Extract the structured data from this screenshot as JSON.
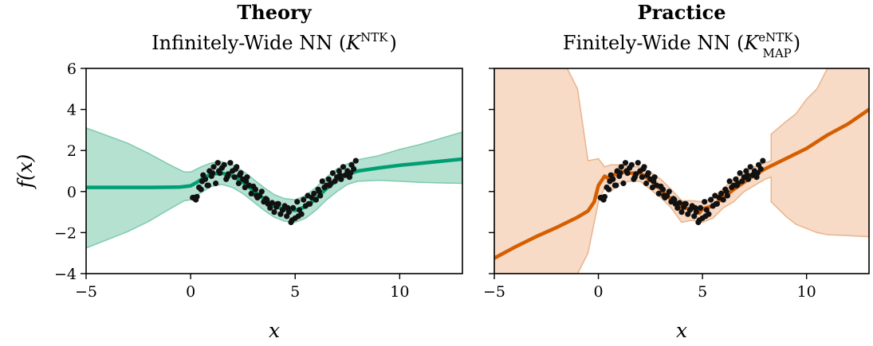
{
  "chart_data": [
    {
      "type": "line",
      "title": "Theory",
      "subtitle": {
        "prefix": "Infinitely-Wide NN (",
        "symbol": "K",
        "sup": "NTK",
        "sub": "",
        "suffix": ")"
      },
      "xlabel": "x",
      "ylabel": "f(x)",
      "xlim": [
        -5,
        13
      ],
      "ylim": [
        -4,
        6
      ],
      "xticks": [
        -5,
        0,
        5,
        10
      ],
      "yticks": [
        -4,
        -2,
        0,
        2,
        4,
        6
      ],
      "xtick_labels": [
        "−5",
        "0",
        "5",
        "10"
      ],
      "ytick_labels": [
        "−4",
        "−2",
        "0",
        "2",
        "4",
        "6"
      ],
      "colors": {
        "line": "#009e73",
        "band": "#a8dcc9",
        "band_edge": "#7fcaaf",
        "points": "#111111"
      },
      "mean": {
        "x": [
          -5,
          -2,
          -1,
          -0.5,
          0,
          0.3,
          0.6,
          1.0,
          1.5,
          2.0,
          2.5,
          3.0,
          3.5,
          4.0,
          4.5,
          5.0,
          5.5,
          6.0,
          6.5,
          7.0,
          7.5,
          8.0,
          9,
          10,
          11,
          12,
          13
        ],
        "y": [
          0.2,
          0.2,
          0.21,
          0.22,
          0.28,
          0.45,
          0.65,
          0.85,
          0.9,
          0.75,
          0.45,
          0.05,
          -0.35,
          -0.7,
          -0.88,
          -0.92,
          -0.75,
          -0.35,
          0.15,
          0.55,
          0.85,
          1.0,
          1.15,
          1.28,
          1.38,
          1.48,
          1.58
        ]
      },
      "band_upper": {
        "x": [
          -5,
          -3,
          -2,
          -1,
          -0.3,
          0,
          0.5,
          1.0,
          1.5,
          2.0,
          2.5,
          3.0,
          3.5,
          4.0,
          4.5,
          5.0,
          5.5,
          6.0,
          6.5,
          7.0,
          7.5,
          8.0,
          9,
          10,
          11,
          12,
          13
        ],
        "y": [
          3.1,
          2.35,
          1.85,
          1.3,
          0.95,
          0.95,
          1.2,
          1.4,
          1.45,
          1.3,
          1.0,
          0.6,
          0.2,
          -0.15,
          -0.35,
          -0.4,
          -0.2,
          0.2,
          0.7,
          1.1,
          1.35,
          1.55,
          1.75,
          2.05,
          2.3,
          2.6,
          2.9
        ]
      },
      "band_lower": {
        "x": [
          -5,
          -3,
          -2,
          -1,
          -0.3,
          0,
          0.5,
          1.0,
          1.5,
          2.0,
          2.5,
          3.0,
          3.5,
          4.0,
          4.5,
          5.0,
          5.5,
          6.0,
          6.5,
          7.0,
          7.5,
          8.0,
          9,
          10,
          11,
          12,
          13
        ],
        "y": [
          -2.75,
          -1.95,
          -1.45,
          -0.85,
          -0.45,
          -0.4,
          -0.05,
          0.25,
          0.35,
          0.2,
          -0.1,
          -0.5,
          -0.9,
          -1.25,
          -1.45,
          -1.5,
          -1.3,
          -0.9,
          -0.4,
          0.0,
          0.35,
          0.5,
          0.55,
          0.5,
          0.45,
          0.42,
          0.4
        ]
      },
      "points": {
        "x": [
          0.1,
          0.2,
          0.3,
          0.4,
          0.5,
          0.6,
          0.7,
          0.8,
          0.9,
          1.0,
          1.1,
          1.2,
          1.3,
          1.4,
          1.5,
          1.6,
          1.7,
          1.8,
          1.9,
          2.0,
          2.1,
          2.2,
          2.3,
          2.4,
          2.5,
          2.6,
          2.7,
          2.8,
          2.9,
          3.0,
          3.1,
          3.2,
          3.3,
          3.4,
          3.5,
          3.6,
          3.7,
          3.8,
          3.9,
          4.0,
          4.1,
          4.2,
          4.3,
          4.4,
          4.5,
          4.6,
          4.7,
          4.8,
          4.9,
          5.0,
          5.1,
          5.2,
          5.3,
          5.4,
          5.5,
          5.6,
          5.7,
          5.8,
          5.9,
          6.0,
          6.1,
          6.2,
          6.3,
          6.4,
          6.5,
          6.6,
          6.7,
          6.8,
          6.9,
          7.0,
          7.1,
          7.2,
          7.3,
          7.4,
          7.5,
          7.6,
          7.7,
          7.8,
          7.9,
          0.25,
          0.55,
          1.05,
          1.35,
          1.75,
          2.15,
          2.65,
          3.15,
          3.65,
          4.15,
          4.65,
          5.15,
          5.65,
          6.15,
          6.65,
          7.15,
          7.65,
          0.15,
          0.85,
          2.35,
          4.85
        ],
        "y": [
          -0.3,
          -0.35,
          -0.25,
          0.2,
          0.1,
          0.8,
          0.6,
          0.3,
          1.0,
          0.75,
          1.2,
          0.4,
          1.4,
          0.9,
          1.15,
          1.3,
          0.6,
          0.85,
          1.4,
          1.0,
          0.7,
          1.2,
          0.4,
          0.9,
          0.6,
          0.2,
          0.7,
          0.3,
          -0.1,
          0.25,
          0.1,
          -0.3,
          -0.2,
          0.0,
          -0.5,
          -0.35,
          -0.6,
          -0.8,
          -0.55,
          -1.0,
          -0.75,
          -0.6,
          -1.1,
          -0.9,
          -0.7,
          -1.2,
          -1.0,
          -1.5,
          -0.8,
          -1.3,
          -0.5,
          -0.9,
          -1.1,
          -0.4,
          -0.7,
          -0.2,
          -0.6,
          -0.3,
          -0.1,
          -0.4,
          0.1,
          -0.2,
          0.5,
          0.2,
          0.3,
          0.6,
          0.4,
          0.9,
          0.5,
          0.7,
          1.0,
          0.6,
          1.2,
          0.8,
          1.0,
          0.7,
          1.3,
          1.1,
          1.5,
          -0.4,
          0.5,
          0.9,
          1.0,
          0.7,
          1.1,
          0.5,
          -0.2,
          -0.4,
          -0.6,
          -0.8,
          -1.2,
          -0.6,
          0.0,
          0.3,
          0.8,
          0.9,
          -0.3,
          0.3,
          0.8,
          -1.4
        ]
      }
    },
    {
      "type": "line",
      "title": "Practice",
      "subtitle": {
        "prefix": "Finitely-Wide NN (",
        "symbol": "K",
        "sup": "eNTK",
        "sub": "MAP",
        "suffix": ")"
      },
      "xlabel": "x",
      "ylabel": "",
      "xlim": [
        -5,
        13
      ],
      "ylim": [
        -4,
        6
      ],
      "xticks": [
        -5,
        0,
        5,
        10
      ],
      "yticks": [
        -4,
        -2,
        0,
        2,
        4,
        6
      ],
      "xtick_labels": [
        "−5",
        "0",
        "5",
        "10"
      ],
      "ytick_labels": [
        "",
        "",
        "",
        "",
        "",
        ""
      ],
      "colors": {
        "line": "#d55e00",
        "band": "#f6d5bd",
        "band_edge": "#ebb38b",
        "points": "#111111"
      },
      "mean": {
        "x": [
          -5,
          -4,
          -3,
          -2,
          -1,
          -0.5,
          -0.2,
          0.0,
          0.3,
          0.6,
          0.9,
          1.2,
          1.5,
          2.0,
          2.5,
          3.0,
          3.5,
          4.0,
          4.5,
          4.8,
          4.85,
          5.0,
          5.5,
          6.0,
          6.5,
          7.0,
          7.5,
          8.0,
          9.0,
          10.0,
          11.0,
          12.0,
          13.0
        ],
        "y": [
          -3.25,
          -2.7,
          -2.2,
          -1.75,
          -1.25,
          -0.95,
          -0.5,
          0.3,
          0.75,
          0.55,
          1.0,
          0.95,
          0.9,
          0.9,
          0.55,
          0.1,
          -0.4,
          -0.8,
          -0.85,
          -0.85,
          -1.05,
          -0.85,
          -0.7,
          -0.3,
          0.1,
          0.45,
          0.8,
          1.1,
          1.6,
          2.1,
          2.75,
          3.3,
          4.0
        ]
      },
      "band_upper": {
        "x": [
          -5,
          -4,
          -3,
          -2,
          -1.5,
          -1,
          -0.5,
          0.0,
          0.3,
          0.6,
          1.0,
          1.5,
          2.0,
          2.5,
          3.0,
          3.5,
          4.0,
          4.5,
          5.0,
          5.5,
          6.0,
          6.5,
          7.0,
          7.5,
          8.0,
          8.3,
          8.3,
          9.0,
          9.5,
          10.0,
          10.5,
          11.0,
          12.0,
          13.0
        ],
        "y": [
          6.0,
          6.0,
          6.0,
          6.0,
          6.0,
          5.0,
          1.5,
          1.6,
          1.2,
          1.3,
          1.3,
          1.2,
          1.2,
          0.95,
          0.6,
          0.1,
          -0.45,
          -0.45,
          -0.5,
          -0.3,
          0.15,
          0.6,
          1.0,
          1.2,
          1.4,
          1.5,
          2.8,
          3.4,
          3.8,
          4.5,
          5.0,
          6.0,
          6.0,
          6.0
        ]
      },
      "band_lower": {
        "x": [
          -5,
          -4,
          -3,
          -2,
          -1.5,
          -1,
          -0.5,
          0.0,
          0.3,
          0.6,
          1.0,
          1.5,
          2.0,
          2.5,
          3.0,
          3.5,
          4.0,
          4.5,
          5.0,
          5.5,
          6.0,
          6.5,
          7.0,
          7.5,
          8.0,
          8.3,
          8.3,
          9.0,
          9.5,
          10.0,
          10.5,
          11.0,
          12.0,
          13.0
        ],
        "y": [
          -4.0,
          -4.0,
          -4.0,
          -4.0,
          -4.0,
          -4.0,
          -3.0,
          -0.5,
          0.2,
          0.0,
          0.4,
          0.5,
          0.5,
          0.1,
          -0.3,
          -0.8,
          -1.5,
          -1.4,
          -1.5,
          -1.3,
          -0.8,
          -0.5,
          0.0,
          0.3,
          0.6,
          0.7,
          -0.5,
          -1.2,
          -1.6,
          -1.8,
          -2.0,
          -2.1,
          -2.15,
          -2.2
        ]
      },
      "points": {
        "x": [
          0.1,
          0.2,
          0.3,
          0.4,
          0.5,
          0.6,
          0.7,
          0.8,
          0.9,
          1.0,
          1.1,
          1.2,
          1.3,
          1.4,
          1.5,
          1.6,
          1.7,
          1.8,
          1.9,
          2.0,
          2.1,
          2.2,
          2.3,
          2.4,
          2.5,
          2.6,
          2.7,
          2.8,
          2.9,
          3.0,
          3.1,
          3.2,
          3.3,
          3.4,
          3.5,
          3.6,
          3.7,
          3.8,
          3.9,
          4.0,
          4.1,
          4.2,
          4.3,
          4.4,
          4.5,
          4.6,
          4.7,
          4.8,
          4.9,
          5.0,
          5.1,
          5.2,
          5.3,
          5.4,
          5.5,
          5.6,
          5.7,
          5.8,
          5.9,
          6.0,
          6.1,
          6.2,
          6.3,
          6.4,
          6.5,
          6.6,
          6.7,
          6.8,
          6.9,
          7.0,
          7.1,
          7.2,
          7.3,
          7.4,
          7.5,
          7.6,
          7.7,
          7.8,
          7.9,
          0.25,
          0.55,
          1.05,
          1.35,
          1.75,
          2.15,
          2.65,
          3.15,
          3.65,
          4.15,
          4.65,
          5.15,
          5.65,
          6.15,
          6.65,
          7.15,
          7.65,
          0.15,
          0.85,
          2.35,
          4.85
        ],
        "y": [
          -0.3,
          -0.35,
          -0.25,
          0.2,
          0.1,
          0.8,
          0.6,
          0.3,
          1.0,
          0.75,
          1.2,
          0.4,
          1.4,
          0.9,
          1.15,
          1.3,
          0.6,
          0.85,
          1.4,
          1.0,
          0.7,
          1.2,
          0.4,
          0.9,
          0.6,
          0.2,
          0.7,
          0.3,
          -0.1,
          0.25,
          0.1,
          -0.3,
          -0.2,
          0.0,
          -0.5,
          -0.35,
          -0.6,
          -0.8,
          -0.55,
          -1.0,
          -0.75,
          -0.6,
          -1.1,
          -0.9,
          -0.7,
          -1.2,
          -1.0,
          -1.5,
          -0.8,
          -1.3,
          -0.5,
          -0.9,
          -1.1,
          -0.4,
          -0.7,
          -0.2,
          -0.6,
          -0.3,
          -0.1,
          -0.4,
          0.1,
          -0.2,
          0.5,
          0.2,
          0.3,
          0.6,
          0.4,
          0.9,
          0.5,
          0.7,
          1.0,
          0.6,
          1.2,
          0.8,
          1.0,
          0.7,
          1.3,
          1.1,
          1.5,
          -0.4,
          0.5,
          0.9,
          1.0,
          0.7,
          1.1,
          0.5,
          -0.2,
          -0.4,
          -0.6,
          -0.8,
          -1.2,
          -0.6,
          0.0,
          0.3,
          0.8,
          0.9,
          -0.3,
          0.3,
          0.8,
          -1.4
        ]
      }
    }
  ]
}
